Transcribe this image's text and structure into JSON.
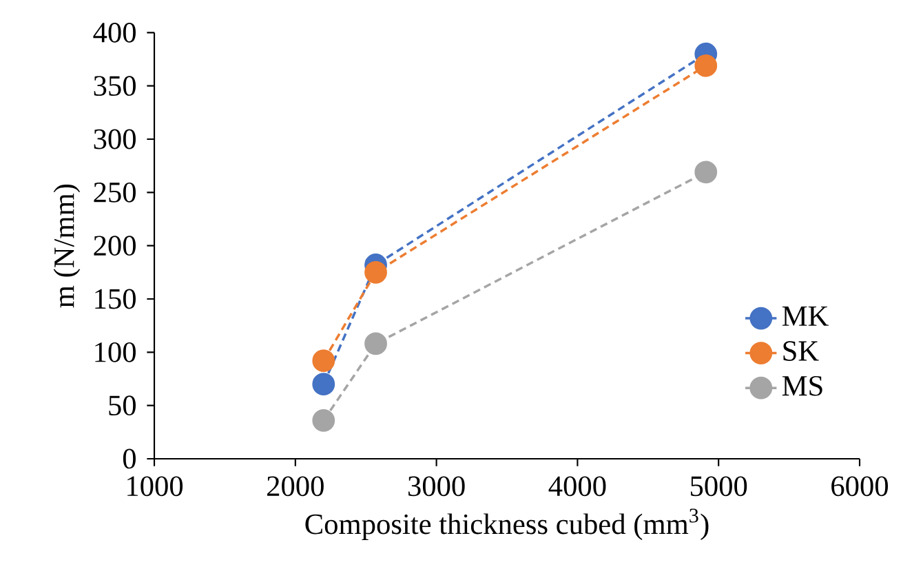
{
  "chart_data": {
    "type": "line",
    "xlabel": "Composite thickness cubed (mm$^{3}$)",
    "ylabel": "m (N/mm)",
    "xlim": [
      1000,
      6000
    ],
    "xticks": [
      1000,
      2000,
      3000,
      4000,
      5000,
      6000
    ],
    "ylim": [
      0,
      400
    ],
    "yticks": [
      0,
      50,
      100,
      150,
      200,
      250,
      300,
      350,
      400
    ],
    "x": [
      2200,
      2570,
      4910
    ],
    "series": [
      {
        "name": "MK",
        "color": "#4472c4",
        "values": [
          70,
          182,
          380
        ]
      },
      {
        "name": "SK",
        "color": "#ed7d31",
        "values": [
          92,
          175,
          369
        ]
      },
      {
        "name": "MS",
        "color": "#a5a5a5",
        "values": [
          36,
          108,
          269
        ]
      }
    ],
    "grid": false,
    "legend": "right",
    "marker": "circle",
    "line_style": "dashed"
  }
}
